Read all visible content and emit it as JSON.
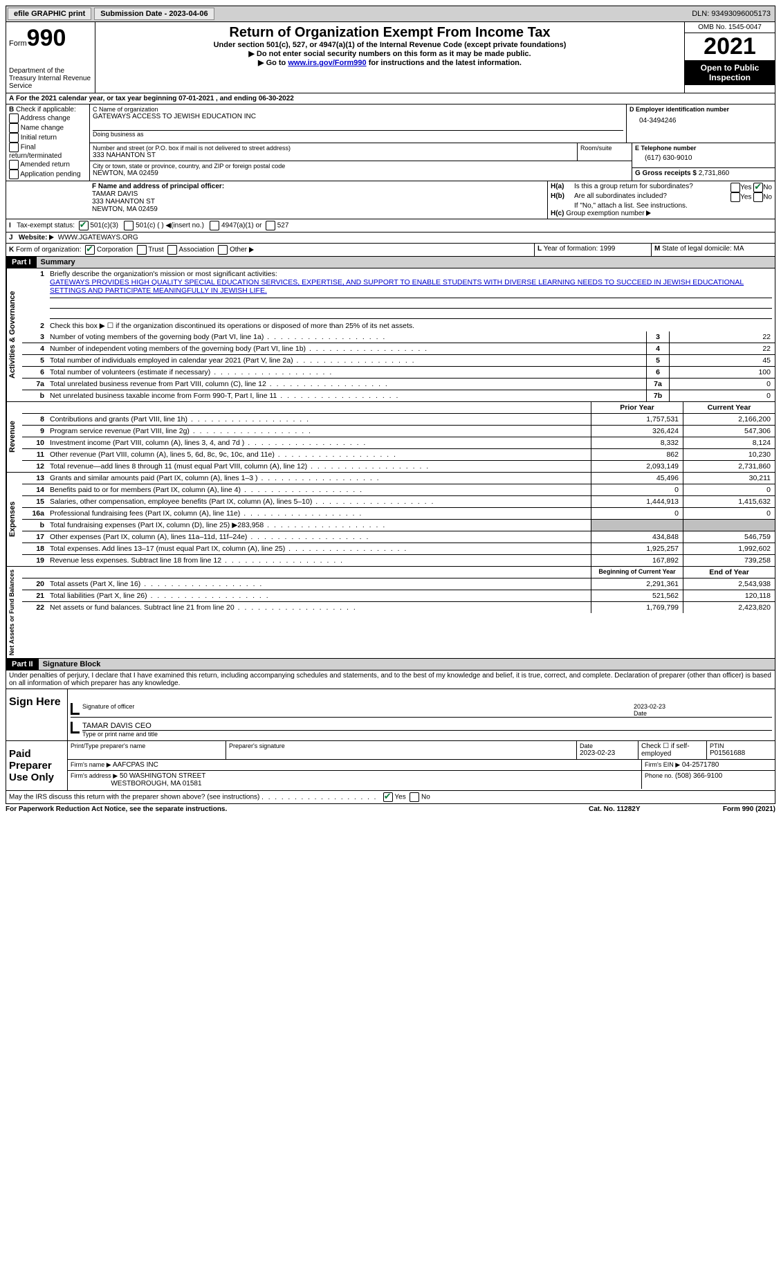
{
  "topbar": {
    "efile": "efile GRAPHIC print",
    "subdate_label": "Submission Date - 2023-04-06",
    "dln_label": "DLN:",
    "dln": "93493096005173"
  },
  "header": {
    "form_word": "Form",
    "form_num": "990",
    "dept": "Department of the Treasury Internal Revenue Service",
    "title": "Return of Organization Exempt From Income Tax",
    "sub1": "Under section 501(c), 527, or 4947(a)(1) of the Internal Revenue Code (except private foundations)",
    "sub2": "Do not enter social security numbers on this form as it may be made public.",
    "sub3_pre": "Go to ",
    "sub3_link": "www.irs.gov/Form990",
    "sub3_post": " for instructions and the latest information.",
    "omb": "OMB No. 1545-0047",
    "year": "2021",
    "open": "Open to Public Inspection"
  },
  "A": {
    "text": "For the 2021 calendar year, or tax year beginning 07-01-2021   , and ending 06-30-2022"
  },
  "B": {
    "label": "Check if applicable:",
    "opts": [
      "Address change",
      "Name change",
      "Initial return",
      "Final return/terminated",
      "Amended return",
      "Application pending"
    ]
  },
  "C": {
    "name_label": "C Name of organization",
    "name": "GATEWAYS ACCESS TO JEWISH EDUCATION INC",
    "dba_label": "Doing business as",
    "street_label": "Number and street (or P.O. box if mail is not delivered to street address)",
    "room_label": "Room/suite",
    "street": "333 NAHANTON ST",
    "city_label": "City or town, state or province, country, and ZIP or foreign postal code",
    "city": "NEWTON, MA  02459"
  },
  "D": {
    "label": "D Employer identification number",
    "val": "04-3494246"
  },
  "E": {
    "label": "E Telephone number",
    "val": "(617) 630-9010"
  },
  "G": {
    "label": "G Gross receipts $",
    "val": "2,731,860"
  },
  "F": {
    "label": "F  Name and address of principal officer:",
    "name": "TAMAR DAVIS",
    "addr1": "333 NAHANTON ST",
    "addr2": "NEWTON, MA  02459"
  },
  "H": {
    "a": "Is this a group return for subordinates?",
    "b": "Are all subordinates included?",
    "b_note": "If \"No,\" attach a list. See instructions.",
    "c": "Group exemption number",
    "yes": "Yes",
    "no": "No"
  },
  "I": {
    "label": "Tax-exempt status:",
    "o1": "501(c)(3)",
    "o2": "501(c) (  )",
    "o2b": "(insert no.)",
    "o3": "4947(a)(1) or",
    "o4": "527"
  },
  "J": {
    "label": "Website:",
    "val": "WWW.JGATEWAYS.ORG"
  },
  "K": {
    "label": "Form of organization:",
    "opts": [
      "Corporation",
      "Trust",
      "Association",
      "Other"
    ]
  },
  "L": {
    "label": "Year of formation:",
    "val": "1999"
  },
  "M": {
    "label": "State of legal domicile:",
    "val": "MA"
  },
  "part1": {
    "tag": "Part I",
    "title": "Summary",
    "l1a": "Briefly describe the organization's mission or most significant activities:",
    "l1b": "GATEWAYS PROVIDES HIGH QUALITY SPECIAL EDUCATION SERVICES, EXPERTISE, AND SUPPORT TO ENABLE STUDENTS WITH DIVERSE LEARNING NEEDS TO SUCCEED IN JEWISH EDUCATIONAL SETTINGS AND PARTICIPATE MEANINGFULLY IN JEWISH LIFE.",
    "l2": "Check this box ▶ ☐ if the organization discontinued its operations or disposed of more than 25% of its net assets.",
    "vert_ag": "Activities & Governance",
    "vert_rev": "Revenue",
    "vert_exp": "Expenses",
    "vert_net": "Net Assets or Fund Balances",
    "lines_ag": [
      {
        "n": "3",
        "t": "Number of voting members of the governing body (Part VI, line 1a)",
        "box": "3",
        "v": "22"
      },
      {
        "n": "4",
        "t": "Number of independent voting members of the governing body (Part VI, line 1b)",
        "box": "4",
        "v": "22"
      },
      {
        "n": "5",
        "t": "Total number of individuals employed in calendar year 2021 (Part V, line 2a)",
        "box": "5",
        "v": "45"
      },
      {
        "n": "6",
        "t": "Total number of volunteers (estimate if necessary)",
        "box": "6",
        "v": "100"
      },
      {
        "n": "7a",
        "t": "Total unrelated business revenue from Part VIII, column (C), line 12",
        "box": "7a",
        "v": "0"
      },
      {
        "n": "b",
        "t": "Net unrelated business taxable income from Form 990-T, Part I, line 11",
        "box": "7b",
        "v": "0"
      }
    ],
    "hdr_prior": "Prior Year",
    "hdr_curr": "Current Year",
    "lines_rev": [
      {
        "n": "8",
        "t": "Contributions and grants (Part VIII, line 1h)",
        "p": "1,757,531",
        "c": "2,166,200"
      },
      {
        "n": "9",
        "t": "Program service revenue (Part VIII, line 2g)",
        "p": "326,424",
        "c": "547,306"
      },
      {
        "n": "10",
        "t": "Investment income (Part VIII, column (A), lines 3, 4, and 7d )",
        "p": "8,332",
        "c": "8,124"
      },
      {
        "n": "11",
        "t": "Other revenue (Part VIII, column (A), lines 5, 6d, 8c, 9c, 10c, and 11e)",
        "p": "862",
        "c": "10,230"
      },
      {
        "n": "12",
        "t": "Total revenue—add lines 8 through 11 (must equal Part VIII, column (A), line 12)",
        "p": "2,093,149",
        "c": "2,731,860"
      }
    ],
    "lines_exp": [
      {
        "n": "13",
        "t": "Grants and similar amounts paid (Part IX, column (A), lines 1–3 )",
        "p": "45,496",
        "c": "30,211"
      },
      {
        "n": "14",
        "t": "Benefits paid to or for members (Part IX, column (A), line 4)",
        "p": "0",
        "c": "0"
      },
      {
        "n": "15",
        "t": "Salaries, other compensation, employee benefits (Part IX, column (A), lines 5–10)",
        "p": "1,444,913",
        "c": "1,415,632"
      },
      {
        "n": "16a",
        "t": "Professional fundraising fees (Part IX, column (A), line 11e)",
        "p": "0",
        "c": "0"
      },
      {
        "n": "b",
        "t": "Total fundraising expenses (Part IX, column (D), line 25) ▶283,958",
        "p": "",
        "c": "",
        "shade": true
      },
      {
        "n": "17",
        "t": "Other expenses (Part IX, column (A), lines 11a–11d, 11f–24e)",
        "p": "434,848",
        "c": "546,759"
      },
      {
        "n": "18",
        "t": "Total expenses. Add lines 13–17 (must equal Part IX, column (A), line 25)",
        "p": "1,925,257",
        "c": "1,992,602"
      },
      {
        "n": "19",
        "t": "Revenue less expenses. Subtract line 18 from line 12",
        "p": "167,892",
        "c": "739,258"
      }
    ],
    "hdr_begin": "Beginning of Current Year",
    "hdr_end": "End of Year",
    "lines_net": [
      {
        "n": "20",
        "t": "Total assets (Part X, line 16)",
        "p": "2,291,361",
        "c": "2,543,938"
      },
      {
        "n": "21",
        "t": "Total liabilities (Part X, line 26)",
        "p": "521,562",
        "c": "120,118"
      },
      {
        "n": "22",
        "t": "Net assets or fund balances. Subtract line 21 from line 20",
        "p": "1,769,799",
        "c": "2,423,820"
      }
    ]
  },
  "part2": {
    "tag": "Part II",
    "title": "Signature Block",
    "decl": "Under penalties of perjury, I declare that I have examined this return, including accompanying schedules and statements, and to the best of my knowledge and belief, it is true, correct, and complete. Declaration of preparer (other than officer) is based on all information of which preparer has any knowledge.",
    "sign_here": "Sign Here",
    "sig_officer": "Signature of officer",
    "sig_date": "2023-02-23",
    "date_label": "Date",
    "officer_name": "TAMAR DAVIS  CEO",
    "type_name": "Type or print name and title",
    "paid": "Paid Preparer Use Only",
    "prep_name_label": "Print/Type preparer's name",
    "prep_sig_label": "Preparer's signature",
    "prep_date_label": "Date",
    "prep_date": "2023-02-23",
    "check_self": "Check ☐ if self-employed",
    "ptin_label": "PTIN",
    "ptin": "P01561688",
    "firm_name_label": "Firm's name   ▶",
    "firm_name": "AAFCPAS INC",
    "firm_ein_label": "Firm's EIN ▶",
    "firm_ein": "04-2571780",
    "firm_addr_label": "Firm's address ▶",
    "firm_addr1": "50 WASHINGTON STREET",
    "firm_addr2": "WESTBOROUGH, MA  01581",
    "phone_label": "Phone no.",
    "phone": "(508) 366-9100",
    "may_irs": "May the IRS discuss this return with the preparer shown above? (see instructions)",
    "yes": "Yes",
    "no": "No"
  },
  "footer": {
    "left": "For Paperwork Reduction Act Notice, see the separate instructions.",
    "mid": "Cat. No. 11282Y",
    "right": "Form 990 (2021)"
  }
}
